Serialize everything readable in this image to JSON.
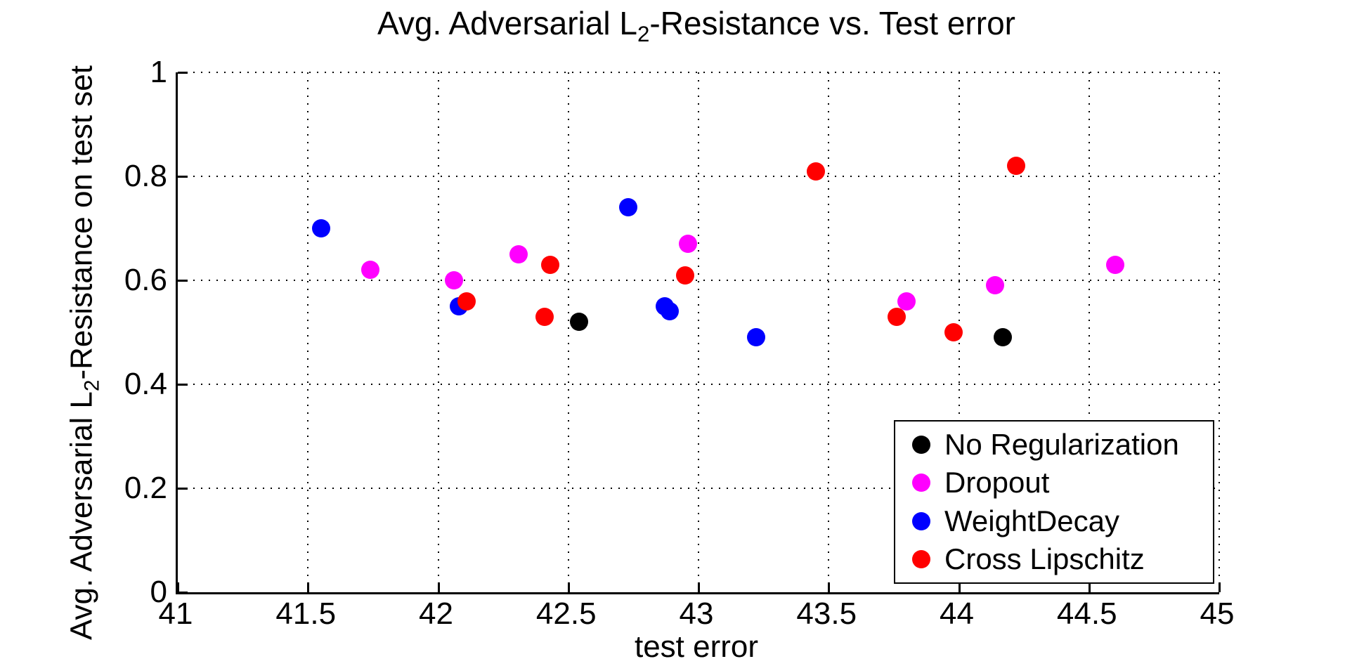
{
  "title": {
    "prefix": "Avg. Adversarial L",
    "sub": "2",
    "suffix": "-Resistance vs. Test error"
  },
  "axis_colors": {
    "axis": "#000000",
    "grid": "#000000",
    "background": "#ffffff"
  },
  "chart_data": {
    "type": "scatter",
    "title": "Avg. Adversarial L2-Resistance vs. Test error",
    "xlabel": "test error",
    "ylabel": {
      "prefix": "Avg. Adversarial L",
      "sub": "2",
      "suffix": "-Resistance on test set"
    },
    "xlim": [
      41,
      45
    ],
    "ylim": [
      0,
      1
    ],
    "xticks": [
      41,
      41.5,
      42,
      42.5,
      43,
      43.5,
      44,
      44.5,
      45
    ],
    "xtick_labels": [
      "41",
      "41.5",
      "42",
      "42.5",
      "43",
      "43.5",
      "44",
      "44.5",
      "45"
    ],
    "yticks": [
      0,
      0.2,
      0.4,
      0.6,
      0.8,
      1
    ],
    "ytick_labels": [
      "0",
      "0.2",
      "0.4",
      "0.6",
      "0.8",
      "1"
    ],
    "grid": "dotted",
    "legend_position": "bottom-right",
    "marker": "filled-circle",
    "series": [
      {
        "name": "No Regularization",
        "color": "#000000",
        "points": [
          [
            42.54,
            0.52
          ],
          [
            44.17,
            0.49
          ]
        ]
      },
      {
        "name": "Dropout",
        "color": "#FF00FF",
        "points": [
          [
            41.74,
            0.62
          ],
          [
            42.06,
            0.6
          ],
          [
            42.31,
            0.65
          ],
          [
            42.96,
            0.67
          ],
          [
            43.8,
            0.56
          ],
          [
            44.14,
            0.59
          ],
          [
            44.6,
            0.63
          ]
        ]
      },
      {
        "name": "WeightDecay",
        "color": "#0000FF",
        "points": [
          [
            41.55,
            0.7
          ],
          [
            42.08,
            0.55
          ],
          [
            42.73,
            0.74
          ],
          [
            42.87,
            0.55
          ],
          [
            42.89,
            0.54
          ],
          [
            43.22,
            0.49
          ]
        ]
      },
      {
        "name": "Cross Lipschitz",
        "color": "#FF0000",
        "points": [
          [
            42.11,
            0.56
          ],
          [
            42.41,
            0.53
          ],
          [
            42.43,
            0.63
          ],
          [
            42.95,
            0.61
          ],
          [
            43.45,
            0.81
          ],
          [
            43.76,
            0.53
          ],
          [
            43.98,
            0.5
          ],
          [
            44.22,
            0.82
          ]
        ]
      }
    ]
  }
}
